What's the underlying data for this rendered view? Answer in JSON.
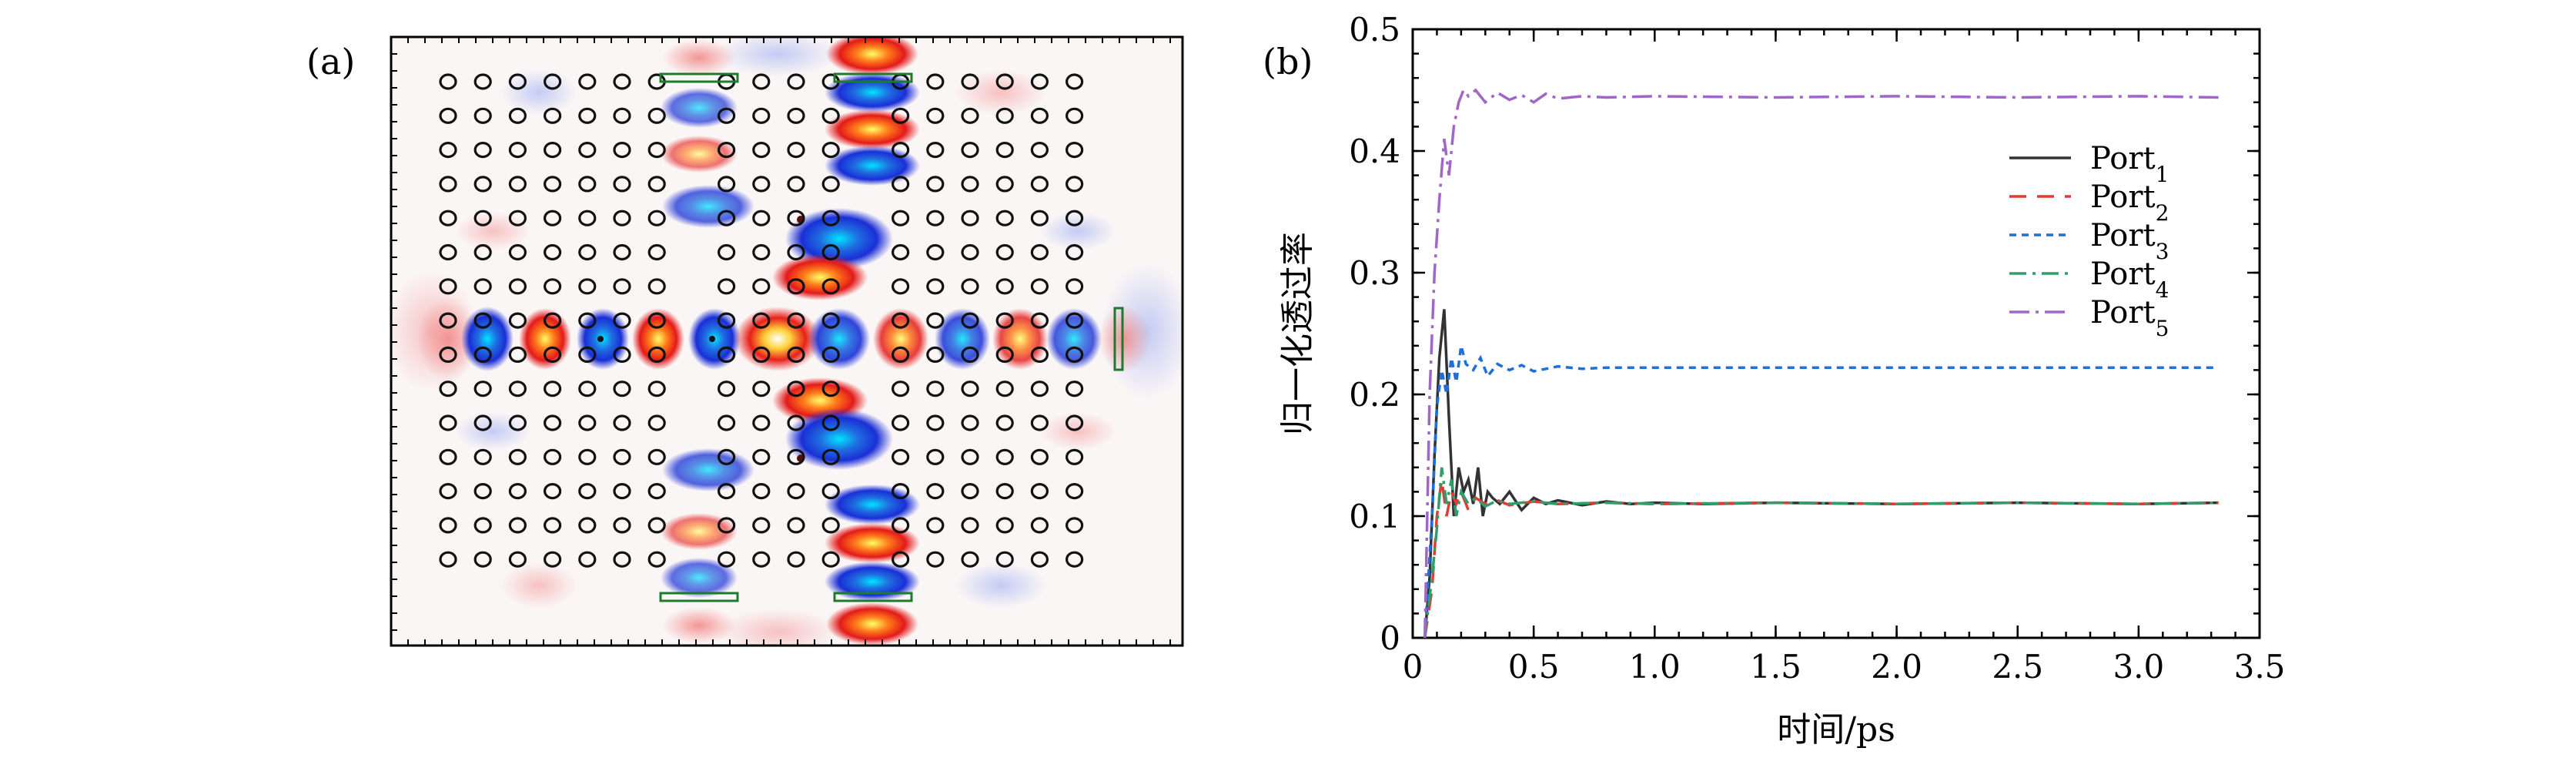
{
  "panel_a": {
    "label": "(a)",
    "description_type": "field-map"
  },
  "panel_b": {
    "label": "(b)"
  },
  "chart_data": {
    "type": "line",
    "title": "",
    "xlabel": "时间/ps",
    "ylabel": "归一化透过率",
    "xlim": [
      0,
      3.5
    ],
    "ylim": [
      0,
      0.5
    ],
    "xticks": [
      "0",
      "0.5",
      "1.0",
      "1.5",
      "2.0",
      "2.5",
      "3.0",
      "3.5"
    ],
    "yticks": [
      "0",
      "0.1",
      "0.2",
      "0.3",
      "0.4",
      "0.5"
    ],
    "legend_position": "upper-right",
    "series": [
      {
        "name": "Port",
        "sub": "1",
        "color": "#333333",
        "dash": "solid",
        "x": [
          0.05,
          0.07,
          0.09,
          0.11,
          0.13,
          0.15,
          0.17,
          0.19,
          0.21,
          0.23,
          0.25,
          0.27,
          0.29,
          0.31,
          0.33,
          0.36,
          0.4,
          0.45,
          0.5,
          0.55,
          0.6,
          0.7,
          0.8,
          0.9,
          1.0,
          1.2,
          1.5,
          2.0,
          2.5,
          3.0,
          3.33
        ],
        "y": [
          0.0,
          0.05,
          0.15,
          0.23,
          0.27,
          0.18,
          0.1,
          0.14,
          0.12,
          0.13,
          0.11,
          0.14,
          0.1,
          0.12,
          0.115,
          0.11,
          0.12,
          0.105,
          0.115,
          0.11,
          0.113,
          0.109,
          0.112,
          0.11,
          0.111,
          0.11,
          0.111,
          0.11,
          0.111,
          0.11,
          0.111
        ]
      },
      {
        "name": "Port",
        "sub": "2",
        "color": "#e53935",
        "dash": "long-dash",
        "x": [
          0.05,
          0.08,
          0.1,
          0.12,
          0.14,
          0.16,
          0.18,
          0.2,
          0.23,
          0.26,
          0.3,
          0.35,
          0.4,
          0.5,
          0.6,
          0.8,
          1.0,
          1.5,
          2.0,
          2.5,
          3.0,
          3.33
        ],
        "y": [
          0.0,
          0.04,
          0.1,
          0.13,
          0.1,
          0.12,
          0.11,
          0.12,
          0.105,
          0.115,
          0.11,
          0.113,
          0.109,
          0.112,
          0.11,
          0.111,
          0.11,
          0.111,
          0.11,
          0.111,
          0.11,
          0.111
        ]
      },
      {
        "name": "Port",
        "sub": "3",
        "color": "#1e6fd9",
        "dash": "short-dash",
        "x": [
          0.05,
          0.08,
          0.1,
          0.12,
          0.14,
          0.16,
          0.18,
          0.2,
          0.22,
          0.25,
          0.28,
          0.31,
          0.35,
          0.4,
          0.45,
          0.5,
          0.6,
          0.7,
          0.8,
          1.0,
          1.5,
          2.0,
          2.5,
          3.0,
          3.33
        ],
        "y": [
          0.0,
          0.1,
          0.19,
          0.22,
          0.2,
          0.23,
          0.21,
          0.24,
          0.225,
          0.22,
          0.23,
          0.215,
          0.225,
          0.22,
          0.224,
          0.219,
          0.223,
          0.221,
          0.222,
          0.222,
          0.222,
          0.222,
          0.222,
          0.222,
          0.222
        ]
      },
      {
        "name": "Port",
        "sub": "4",
        "color": "#2e9e6b",
        "dash": "dash-dot",
        "x": [
          0.05,
          0.08,
          0.1,
          0.12,
          0.14,
          0.16,
          0.18,
          0.2,
          0.23,
          0.26,
          0.3,
          0.35,
          0.4,
          0.5,
          0.6,
          0.8,
          1.0,
          1.5,
          2.0,
          2.5,
          3.0,
          3.33
        ],
        "y": [
          0.0,
          0.05,
          0.09,
          0.14,
          0.11,
          0.13,
          0.1,
          0.12,
          0.11,
          0.115,
          0.108,
          0.113,
          0.11,
          0.112,
          0.11,
          0.111,
          0.11,
          0.111,
          0.11,
          0.111,
          0.11,
          0.111
        ]
      },
      {
        "name": "Port",
        "sub": "5",
        "color": "#a066c8",
        "dash": "dash-dot-long",
        "x": [
          0.05,
          0.07,
          0.09,
          0.11,
          0.13,
          0.15,
          0.17,
          0.19,
          0.21,
          0.23,
          0.26,
          0.3,
          0.35,
          0.4,
          0.45,
          0.5,
          0.55,
          0.6,
          0.7,
          0.8,
          1.0,
          1.5,
          2.0,
          2.5,
          3.0,
          3.33
        ],
        "y": [
          0.0,
          0.2,
          0.3,
          0.36,
          0.41,
          0.38,
          0.42,
          0.44,
          0.45,
          0.445,
          0.45,
          0.44,
          0.448,
          0.442,
          0.446,
          0.44,
          0.447,
          0.443,
          0.445,
          0.444,
          0.445,
          0.444,
          0.445,
          0.444,
          0.445,
          0.444
        ]
      }
    ]
  }
}
